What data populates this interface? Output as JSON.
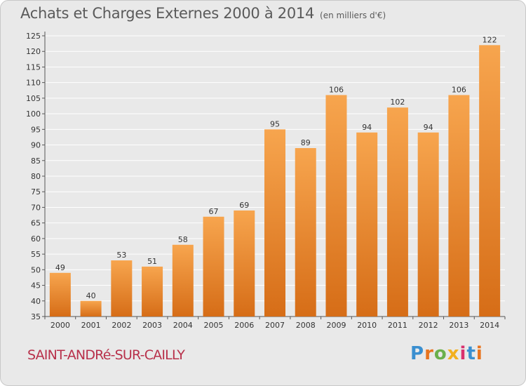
{
  "title": "Achats et Charges Externes 2000 à 2014",
  "subtitle": "(en milliers d'€)",
  "commune": "SAINT-ANDRé-SUR-CAILLY",
  "logo": {
    "text": "Proxiti",
    "colors": [
      "#3a8fd0",
      "#e8741e",
      "#6ab04c",
      "#f2b01e",
      "#d9306e",
      "#3a8fd0",
      "#e8741e"
    ]
  },
  "colors": {
    "bar_light": "#f7a54e",
    "bar_dark": "#d66d17",
    "grid": "#ffffff",
    "background": "#e9e9e9"
  },
  "chart_data": {
    "type": "bar",
    "categories": [
      "2000",
      "2001",
      "2002",
      "2003",
      "2004",
      "2005",
      "2006",
      "2007",
      "2008",
      "2009",
      "2010",
      "2011",
      "2012",
      "2013",
      "2014"
    ],
    "values": [
      49,
      40,
      53,
      51,
      58,
      67,
      69,
      95,
      89,
      106,
      94,
      102,
      94,
      106,
      122
    ],
    "data_labels": [
      "49",
      "40",
      "53",
      "51",
      "58",
      "67",
      "69",
      "95",
      "89",
      "106",
      "94",
      "102",
      "94",
      "106",
      "122"
    ],
    "y_ticks": [
      "35",
      "40",
      "45",
      "50",
      "55",
      "60",
      "65",
      "70",
      "75",
      "80",
      "85",
      "90",
      "95",
      "100",
      "105",
      "110",
      "115",
      "120",
      "125"
    ],
    "ylim": [
      35,
      125
    ],
    "grid": true,
    "legend": "none"
  }
}
